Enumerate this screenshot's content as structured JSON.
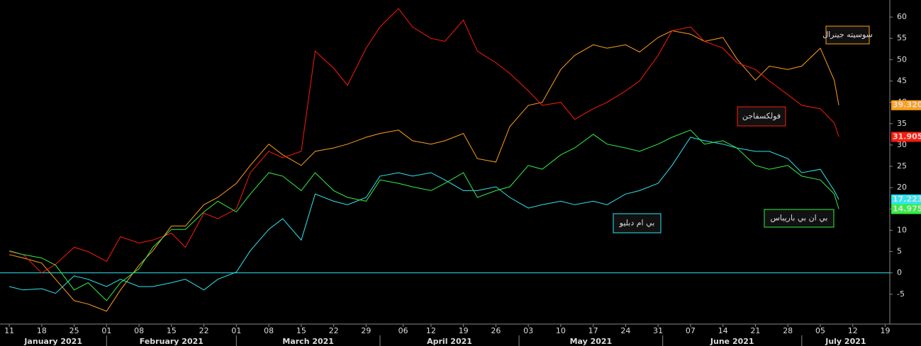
{
  "chart_data": {
    "type": "line",
    "x": [
      "2021-01-11",
      "2021-01-14",
      "2021-01-18",
      "2021-01-21",
      "2021-01-25",
      "2021-01-28",
      "2021-02-01",
      "2021-02-04",
      "2021-02-08",
      "2021-02-11",
      "2021-02-15",
      "2021-02-18",
      "2021-02-22",
      "2021-02-25",
      "2021-03-01",
      "2021-03-04",
      "2021-03-08",
      "2021-03-11",
      "2021-03-15",
      "2021-03-18",
      "2021-03-22",
      "2021-03-25",
      "2021-03-29",
      "2021-04-01",
      "2021-04-05",
      "2021-04-08",
      "2021-04-12",
      "2021-04-15",
      "2021-04-19",
      "2021-04-22",
      "2021-04-26",
      "2021-04-29",
      "2021-05-03",
      "2021-05-06",
      "2021-05-10",
      "2021-05-13",
      "2021-05-17",
      "2021-05-20",
      "2021-05-24",
      "2021-05-27",
      "2021-05-31",
      "2021-06-03",
      "2021-06-07",
      "2021-06-10",
      "2021-06-14",
      "2021-06-17",
      "2021-06-21",
      "2021-06-24",
      "2021-06-28",
      "2021-07-01",
      "2021-07-05",
      "2021-07-08",
      "2021-07-09"
    ],
    "series": [
      {
        "name": "سوسيته جينرال",
        "color": "#ff9f1a",
        "last_label": "39.320",
        "values": [
          4.3,
          3.5,
          2.3,
          -1.5,
          -6.5,
          -7.3,
          -9,
          -4,
          1.8,
          5.2,
          11,
          11,
          16,
          17.7,
          21,
          25.2,
          30.2,
          27.7,
          25.2,
          28.5,
          29.3,
          30.2,
          31.8,
          32.7,
          33.5,
          31,
          30.2,
          31,
          32.7,
          26.8,
          26,
          34.3,
          39.3,
          40,
          47.7,
          51,
          53.5,
          52.7,
          53.5,
          51.8,
          55.2,
          56.8,
          56,
          54.3,
          55.2,
          50.2,
          45.2,
          48.5,
          47.7,
          48.5,
          52.7,
          45.2,
          39.32
        ]
      },
      {
        "name": "فولكسفاجن",
        "color": "#ff1a0a",
        "last_label": "31.905",
        "values": [
          5,
          4.3,
          0,
          2,
          6,
          5,
          2.7,
          8.5,
          7,
          7.7,
          9.3,
          6,
          14,
          12.7,
          15,
          23.5,
          28.5,
          27,
          28.5,
          52,
          48,
          44,
          52.7,
          57.7,
          62,
          57.7,
          55,
          54.3,
          59.3,
          52,
          49.3,
          46.8,
          42.7,
          39.3,
          40,
          36,
          38.5,
          40,
          42.7,
          45,
          51,
          56.8,
          57.7,
          54.3,
          52.7,
          49.3,
          47.7,
          45,
          41.8,
          39.3,
          38.5,
          35.2,
          31.905
        ]
      },
      {
        "name": "بي ام دبليو",
        "color": "#2ee6f0",
        "last_label": "17.223",
        "values": [
          -3.2,
          -4,
          -3.7,
          -4.8,
          -0.7,
          -1.5,
          -3.2,
          -1.5,
          -3.2,
          -3.2,
          -2.3,
          -1.5,
          -4,
          -1.5,
          0.2,
          5.2,
          10.2,
          12.7,
          7.7,
          18.5,
          16.8,
          16,
          17.7,
          22.7,
          23.5,
          22.7,
          23.5,
          21.8,
          19.3,
          19.3,
          20.2,
          17.7,
          15.2,
          16,
          16.8,
          16,
          16.8,
          16,
          18.5,
          19.3,
          21,
          25.2,
          31.8,
          31,
          30.2,
          29.3,
          28.5,
          28.5,
          26.8,
          23.5,
          24.3,
          19.3,
          17.223
        ]
      },
      {
        "name": "بي ان بي باريباس",
        "color": "#33ee44",
        "last_label": "14.975",
        "values": [
          5.2,
          4.3,
          3.5,
          1.8,
          -4,
          -2.3,
          -6.5,
          -2.3,
          1,
          6,
          10.2,
          10.2,
          14.3,
          16.8,
          14.3,
          18.5,
          23.5,
          22.7,
          19.3,
          23.5,
          19.3,
          17.7,
          16.8,
          21.8,
          21,
          20.2,
          19.3,
          21,
          23.5,
          17.7,
          19.3,
          20.2,
          25.2,
          24.3,
          27.7,
          29.3,
          32.5,
          30.2,
          29.3,
          28.5,
          30.2,
          31.8,
          33.5,
          30.2,
          31,
          29.3,
          25.2,
          24.3,
          25.2,
          22.7,
          21.8,
          18.5,
          14.975
        ]
      }
    ],
    "xlim": [
      "2021-01-09",
      "2021-07-20"
    ],
    "xticks": [
      {
        "value": "2021-01-11",
        "label": "11"
      },
      {
        "value": "2021-01-18",
        "label": "18"
      },
      {
        "value": "2021-01-25",
        "label": "25"
      },
      {
        "value": "2021-02-01",
        "label": "01"
      },
      {
        "value": "2021-02-08",
        "label": "08"
      },
      {
        "value": "2021-02-15",
        "label": "15"
      },
      {
        "value": "2021-02-22",
        "label": "22"
      },
      {
        "value": "2021-03-01",
        "label": "01"
      },
      {
        "value": "2021-03-08",
        "label": "08"
      },
      {
        "value": "2021-03-15",
        "label": "15"
      },
      {
        "value": "2021-03-22",
        "label": "22"
      },
      {
        "value": "2021-03-29",
        "label": "29"
      },
      {
        "value": "2021-04-06",
        "label": "06"
      },
      {
        "value": "2021-04-12",
        "label": "12"
      },
      {
        "value": "2021-04-19",
        "label": "19"
      },
      {
        "value": "2021-04-26",
        "label": "26"
      },
      {
        "value": "2021-05-03",
        "label": "03"
      },
      {
        "value": "2021-05-10",
        "label": "10"
      },
      {
        "value": "2021-05-17",
        "label": "17"
      },
      {
        "value": "2021-05-24",
        "label": "24"
      },
      {
        "value": "2021-05-31",
        "label": "31"
      },
      {
        "value": "2021-06-07",
        "label": "07"
      },
      {
        "value": "2021-06-14",
        "label": "14"
      },
      {
        "value": "2021-06-21",
        "label": "21"
      },
      {
        "value": "2021-06-28",
        "label": "28"
      },
      {
        "value": "2021-07-05",
        "label": "05"
      },
      {
        "value": "2021-07-12",
        "label": "12"
      },
      {
        "value": "2021-07-19",
        "label": "19"
      }
    ],
    "months": [
      {
        "value": "2021-01",
        "label": "January 2021"
      },
      {
        "value": "2021-02",
        "label": "February 2021"
      },
      {
        "value": "2021-03",
        "label": "March 2021"
      },
      {
        "value": "2021-04",
        "label": "April 2021"
      },
      {
        "value": "2021-05",
        "label": "May 2021"
      },
      {
        "value": "2021-06",
        "label": "June 2021"
      },
      {
        "value": "2021-07",
        "label": "July 2021"
      }
    ],
    "ylim": [
      -12,
      64
    ],
    "yticks": [
      -5,
      0,
      5,
      10,
      15,
      20,
      25,
      30,
      35,
      40,
      45,
      50,
      55,
      60
    ],
    "zero_line": true
  }
}
